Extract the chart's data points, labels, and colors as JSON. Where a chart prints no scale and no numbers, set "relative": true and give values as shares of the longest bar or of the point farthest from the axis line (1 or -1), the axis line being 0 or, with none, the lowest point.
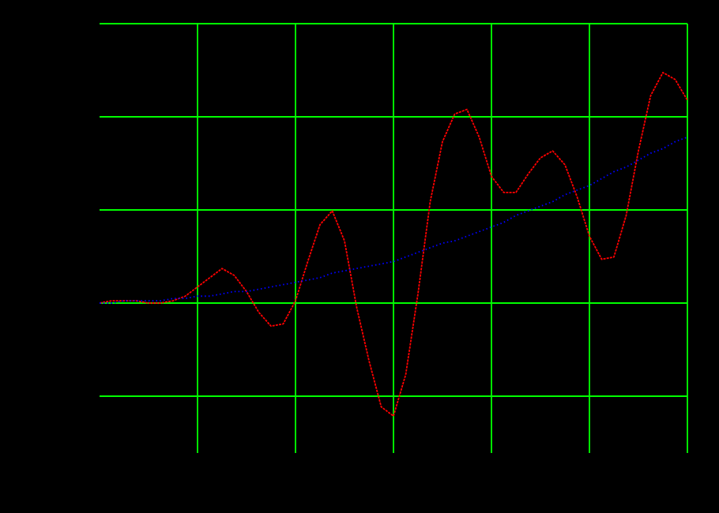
{
  "chart_data": {
    "type": "line",
    "relative": true,
    "grid": true,
    "categories": [
      null,
      null,
      null,
      null,
      null,
      null,
      null,
      null,
      null,
      null,
      null,
      null,
      null,
      null,
      null,
      null,
      null,
      null,
      null,
      null,
      null,
      null,
      null,
      null,
      null,
      null,
      null,
      null,
      null,
      null,
      null,
      null,
      null,
      null,
      null,
      null,
      null,
      null,
      null,
      null,
      null,
      null,
      null,
      null,
      null,
      null,
      null,
      null,
      null
    ],
    "series": [
      {
        "color": "#ff0000",
        "line_style": "dashed",
        "values": [
          0,
          0.01,
          0.01,
          0.01,
          0,
          0,
          0.01,
          0.03,
          0.07,
          0.11,
          0.15,
          0.12,
          0.05,
          -0.04,
          -0.1,
          -0.09,
          0.01,
          0.18,
          0.34,
          0.4,
          0.27,
          -0.02,
          -0.25,
          -0.45,
          -0.49,
          -0.31,
          0.04,
          0.44,
          0.7,
          0.82,
          0.84,
          0.72,
          0.55,
          0.48,
          0.48,
          0.56,
          0.63,
          0.66,
          0.6,
          0.46,
          0.29,
          0.19,
          0.2,
          0.38,
          0.66,
          0.9,
          1.0,
          0.97,
          0.88
        ]
      },
      {
        "color": "#0000ff",
        "line_style": "dotted",
        "values": [
          0,
          0,
          0.01,
          0.01,
          0.01,
          0.01,
          0.02,
          0.02,
          0.03,
          0.03,
          0.04,
          0.05,
          0.05,
          0.06,
          0.07,
          0.08,
          0.09,
          0.1,
          0.11,
          0.13,
          0.14,
          0.15,
          0.16,
          0.17,
          0.18,
          0.2,
          0.22,
          0.24,
          0.26,
          0.27,
          0.29,
          0.31,
          0.33,
          0.35,
          0.38,
          0.4,
          0.42,
          0.44,
          0.47,
          0.49,
          0.51,
          0.54,
          0.57,
          0.59,
          0.62,
          0.65,
          0.67,
          0.7,
          0.72
        ]
      }
    ]
  }
}
